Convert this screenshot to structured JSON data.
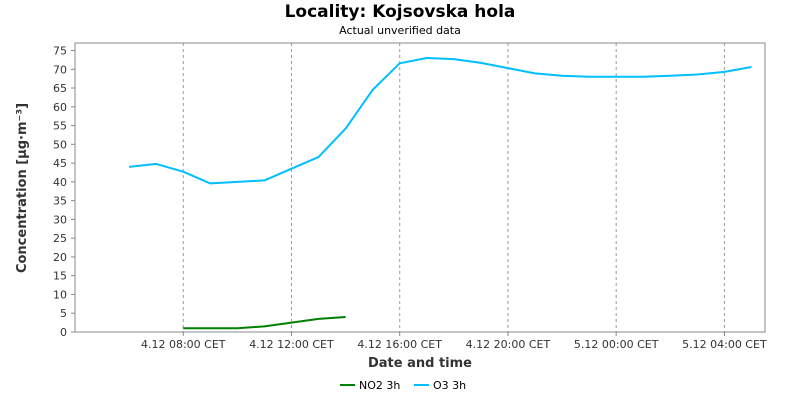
{
  "chart_data": {
    "type": "line",
    "title": "Locality: Kojsovska hola",
    "subtitle": "Actual unverified data",
    "xlabel": "Date and time",
    "ylabel": "Concentration [µg·m⁻³]",
    "ylim": [
      0,
      77
    ],
    "yticks": [
      0,
      5,
      10,
      15,
      20,
      25,
      30,
      35,
      40,
      45,
      50,
      55,
      60,
      65,
      70,
      75
    ],
    "xlim": [
      "2024-12-04 04:00",
      "2024-12-05 05:30"
    ],
    "xticks": [
      {
        "label": "4.12 08:00 CET",
        "hour": 8
      },
      {
        "label": "4.12 12:00 CET",
        "hour": 12
      },
      {
        "label": "4.12 16:00 CET",
        "hour": 16
      },
      {
        "label": "4.12 20:00 CET",
        "hour": 20
      },
      {
        "label": "5.12 00:00 CET",
        "hour": 24
      },
      {
        "label": "5.12 04:00 CET",
        "hour": 28
      }
    ],
    "grid": true,
    "legend_position": "bottom",
    "series": [
      {
        "name": "NO2 3h",
        "color": "#008000",
        "x": [
          8,
          9,
          10,
          11,
          12,
          13,
          14
        ],
        "values": [
          1.0,
          1.0,
          1.0,
          1.5,
          2.5,
          3.5,
          4.0
        ]
      },
      {
        "name": "O3 3h",
        "color": "#00bfff",
        "x": [
          6,
          7,
          8,
          9,
          10,
          11,
          12,
          13,
          14,
          15,
          16,
          17,
          18,
          19,
          20,
          21,
          22,
          23,
          24,
          25,
          26,
          27,
          28,
          29
        ],
        "values": [
          44.0,
          44.8,
          42.7,
          39.6,
          40.0,
          40.4,
          43.5,
          46.6,
          54.2,
          64.5,
          71.6,
          73.0,
          72.7,
          71.7,
          70.3,
          68.9,
          68.3,
          68.0,
          68.0,
          68.0,
          68.3,
          68.6,
          69.3,
          70.6
        ]
      }
    ]
  }
}
